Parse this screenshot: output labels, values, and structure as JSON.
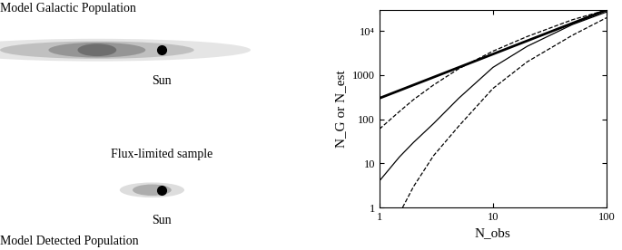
{
  "texts": {
    "top_label": "Model Galactic Population",
    "sun_top": "Sun",
    "sample_label": "Flux-limited sample",
    "sun_bottom": "Sun",
    "bottom_label": "Model Detected Population"
  },
  "chart_data": {
    "type": "line",
    "xlabel": "N_obs",
    "ylabel": "N_G or N_est",
    "log": true,
    "xlim": [
      1,
      100
    ],
    "ylim": [
      1,
      30000
    ],
    "xticks": [
      1,
      10,
      100
    ],
    "yticks": [
      1,
      10,
      100,
      1000,
      {
        "value": 10000,
        "label": "10⁴"
      }
    ],
    "series": [
      {
        "color": "#000000",
        "line_style": "solid",
        "x": [
          1,
          10,
          100
        ],
        "values": [
          300,
          3000,
          30000
        ]
      },
      {
        "color": "#000000",
        "line_style": "dashed",
        "x": [
          1,
          1.5,
          2,
          3,
          5,
          10,
          20,
          50,
          100
        ],
        "values": [
          60,
          150,
          280,
          600,
          1400,
          3500,
          7500,
          18000,
          30000
        ]
      },
      {
        "color": "#000000",
        "line_style": "solid",
        "x": [
          1,
          1.5,
          2,
          3,
          5,
          10,
          20,
          50,
          100
        ],
        "values": [
          4,
          14,
          30,
          80,
          300,
          1500,
          4500,
          14000,
          27000
        ]
      },
      {
        "color": "#000000",
        "line_style": "dashed",
        "x": [
          1.6,
          2,
          3,
          5,
          10,
          20,
          50,
          100
        ],
        "values": [
          1,
          3,
          15,
          70,
          500,
          2000,
          8000,
          20000
        ]
      }
    ]
  }
}
